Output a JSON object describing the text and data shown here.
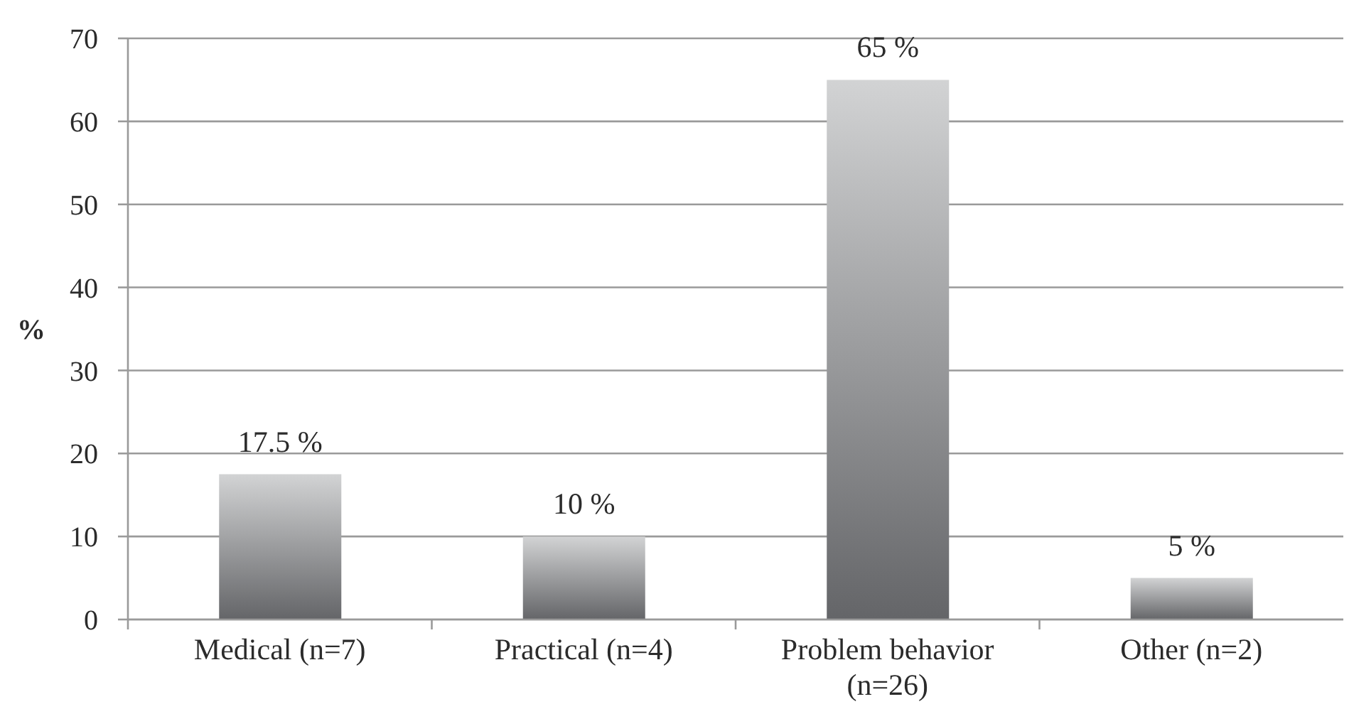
{
  "chart_data": {
    "type": "bar",
    "ylabel": "%",
    "categories": [
      "Medical (n=7)",
      "Practical (n=4)",
      "Problem behavior (n=26)",
      "Other (n=2)"
    ],
    "values": [
      17.5,
      10,
      65,
      5
    ],
    "value_labels": [
      "17.5 %",
      "10 %",
      "65 %",
      "5 %"
    ],
    "color": "#8f9094",
    "ylim": [
      0,
      70
    ],
    "yticks": [
      0,
      10,
      20,
      30,
      40,
      50,
      60,
      70
    ],
    "grid": "y"
  }
}
